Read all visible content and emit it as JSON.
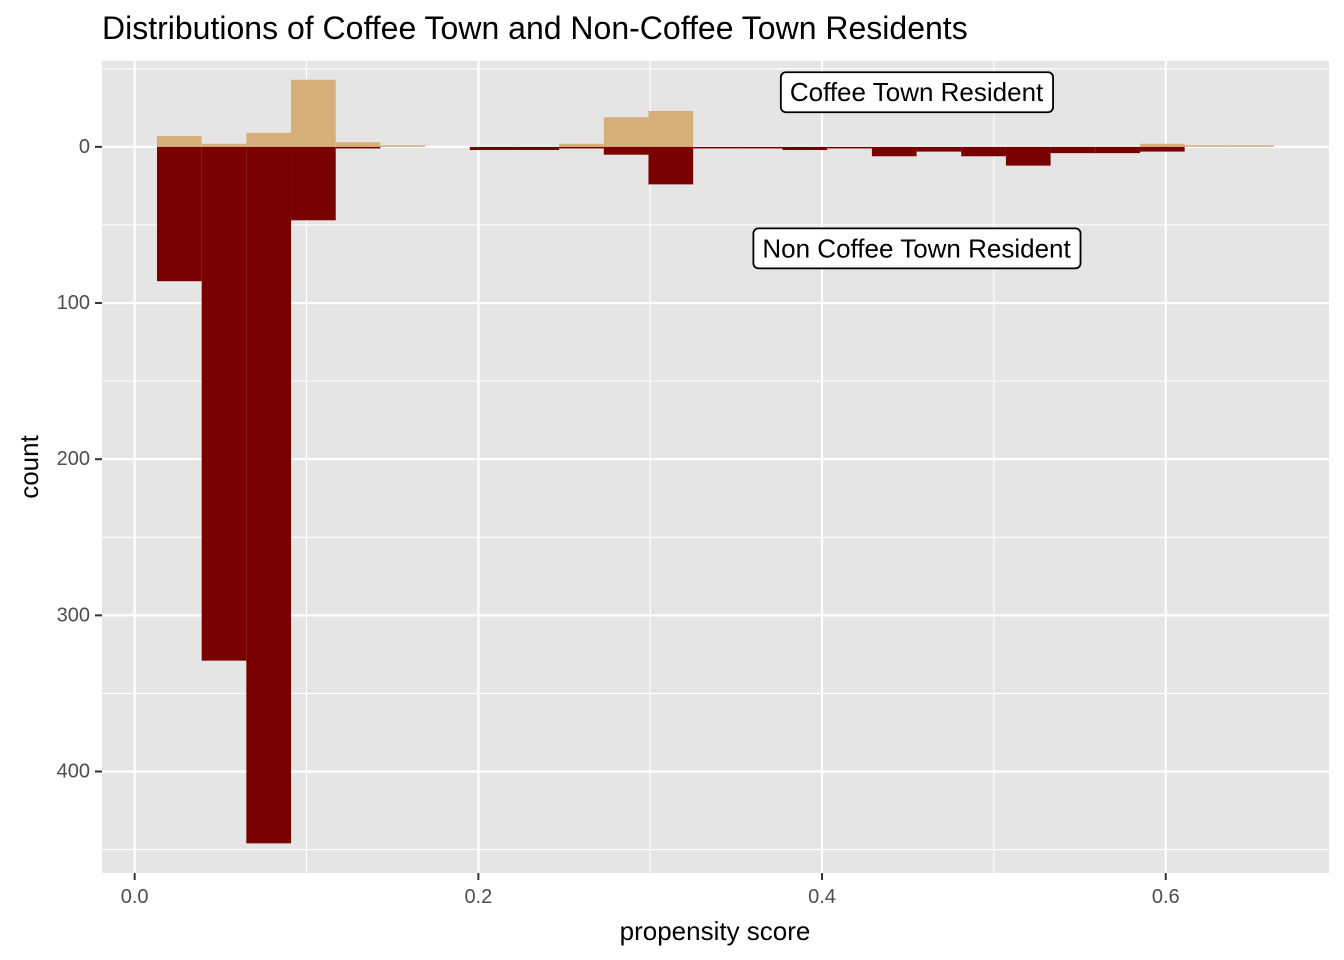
{
  "chart_data": {
    "type": "bar",
    "title": "Distributions of Coffee Town and Non-Coffee Town Residents",
    "xlabel": "propensity score",
    "ylabel": "count",
    "xlim": [
      -0.019,
      0.695
    ],
    "ylim": [
      465,
      -55
    ],
    "x_ticks": [
      0.0,
      0.2,
      0.4,
      0.6
    ],
    "x_tick_labels": [
      "0.0",
      "0.2",
      "0.4",
      "0.6"
    ],
    "y_ticks": [
      0,
      100,
      200,
      300,
      400
    ],
    "y_tick_labels": [
      "0",
      "100",
      "200",
      "300",
      "400"
    ],
    "y_reversed": true,
    "bin_width": 0.026,
    "series": [
      {
        "name": "Coffee Town Resident",
        "direction": "up",
        "color": "#D7AF78",
        "bins": [
          {
            "x0": 0.013,
            "x1": 0.039,
            "count": 7
          },
          {
            "x0": 0.039,
            "x1": 0.065,
            "count": 2
          },
          {
            "x0": 0.065,
            "x1": 0.091,
            "count": 9
          },
          {
            "x0": 0.091,
            "x1": 0.117,
            "count": 43
          },
          {
            "x0": 0.117,
            "x1": 0.143,
            "count": 3
          },
          {
            "x0": 0.143,
            "x1": 0.169,
            "count": 1
          },
          {
            "x0": 0.247,
            "x1": 0.273,
            "count": 2
          },
          {
            "x0": 0.273,
            "x1": 0.299,
            "count": 19
          },
          {
            "x0": 0.299,
            "x1": 0.325,
            "count": 23
          },
          {
            "x0": 0.585,
            "x1": 0.611,
            "count": 2
          },
          {
            "x0": 0.611,
            "x1": 0.637,
            "count": 1
          },
          {
            "x0": 0.637,
            "x1": 0.663,
            "count": 1
          }
        ]
      },
      {
        "name": "Non Coffee Town Resident",
        "direction": "down",
        "color": "#780000",
        "bins": [
          {
            "x0": 0.013,
            "x1": 0.039,
            "count": 86
          },
          {
            "x0": 0.039,
            "x1": 0.065,
            "count": 329
          },
          {
            "x0": 0.065,
            "x1": 0.091,
            "count": 446
          },
          {
            "x0": 0.091,
            "x1": 0.117,
            "count": 47
          },
          {
            "x0": 0.117,
            "x1": 0.143,
            "count": 1
          },
          {
            "x0": 0.195,
            "x1": 0.221,
            "count": 2
          },
          {
            "x0": 0.221,
            "x1": 0.247,
            "count": 2
          },
          {
            "x0": 0.247,
            "x1": 0.273,
            "count": 1
          },
          {
            "x0": 0.273,
            "x1": 0.299,
            "count": 5
          },
          {
            "x0": 0.299,
            "x1": 0.325,
            "count": 24
          },
          {
            "x0": 0.325,
            "x1": 0.351,
            "count": 1
          },
          {
            "x0": 0.351,
            "x1": 0.377,
            "count": 1
          },
          {
            "x0": 0.377,
            "x1": 0.403,
            "count": 2
          },
          {
            "x0": 0.403,
            "x1": 0.429,
            "count": 1
          },
          {
            "x0": 0.429,
            "x1": 0.455,
            "count": 6
          },
          {
            "x0": 0.455,
            "x1": 0.481,
            "count": 3
          },
          {
            "x0": 0.481,
            "x1": 0.507,
            "count": 6
          },
          {
            "x0": 0.507,
            "x1": 0.533,
            "count": 12
          },
          {
            "x0": 0.533,
            "x1": 0.559,
            "count": 4
          },
          {
            "x0": 0.559,
            "x1": 0.585,
            "count": 4
          },
          {
            "x0": 0.585,
            "x1": 0.611,
            "count": 3
          }
        ]
      }
    ],
    "annotations": [
      {
        "text": "Coffee Town Resident",
        "x": 0.455,
        "y": -35
      },
      {
        "text": "Non Coffee Town Resident",
        "x": 0.455,
        "y": 65
      }
    ],
    "colors": {
      "panel_background": "#E5E5E5",
      "grid_line": "#FFFFFF",
      "tick_label": "#4D4D4D",
      "tick_mark": "#333333"
    }
  }
}
